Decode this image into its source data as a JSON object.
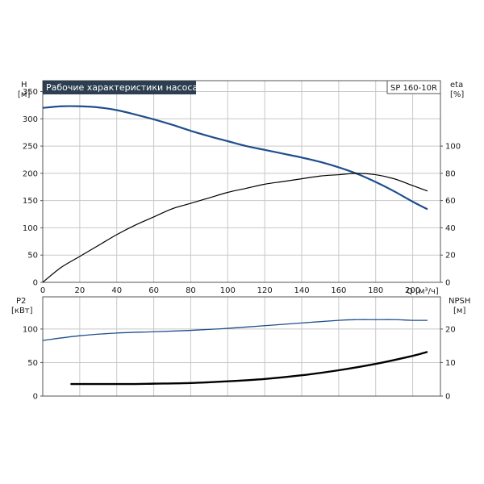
{
  "header": {
    "title": "Рабочие характеристики насоса",
    "model": "SP 160-10R"
  },
  "colors": {
    "head_curve": "#1f4e8c",
    "eta_curve": "#000000",
    "p2_curve": "#1f4e8c",
    "npsh_curve": "#000000",
    "title_bg": "#2c3e50"
  },
  "chart_data": [
    {
      "type": "line",
      "panel": "top",
      "xlabel": "Q [м³/ч]",
      "x_ticks": [
        "0",
        "20",
        "40",
        "60",
        "80",
        "100",
        "120",
        "140",
        "160",
        "180",
        "200"
      ],
      "xlim": [
        0,
        215
      ],
      "left_axis": {
        "label_line1": "H",
        "label_line2": "[м]",
        "ylim": [
          0,
          370
        ],
        "ticks": [
          "0",
          "50",
          "100",
          "150",
          "200",
          "250",
          "300",
          "350"
        ]
      },
      "right_axis": {
        "label_line1": "eta",
        "label_line2": "[%]",
        "ylim": [
          0,
          148
        ],
        "ticks": [
          "0",
          "20",
          "40",
          "60",
          "80",
          "100"
        ]
      },
      "grid": true,
      "series": [
        {
          "name": "H",
          "axis": "left",
          "x": [
            0,
            10,
            20,
            30,
            40,
            50,
            60,
            70,
            80,
            90,
            100,
            110,
            120,
            130,
            140,
            150,
            160,
            170,
            180,
            190,
            200,
            208
          ],
          "y": [
            320,
            323,
            323,
            321,
            316,
            308,
            299,
            289,
            278,
            268,
            259,
            250,
            243,
            236,
            229,
            221,
            211,
            199,
            184,
            167,
            148,
            134
          ]
        },
        {
          "name": "eta",
          "axis": "right",
          "x": [
            0,
            10,
            20,
            30,
            40,
            50,
            60,
            70,
            80,
            90,
            100,
            110,
            120,
            130,
            140,
            150,
            160,
            170,
            180,
            190,
            200,
            208
          ],
          "y": [
            0,
            11,
            19,
            27,
            35,
            42,
            48,
            54,
            58,
            62,
            66,
            69,
            72,
            74,
            76,
            78,
            79,
            80,
            79,
            76,
            71,
            67
          ]
        }
      ]
    },
    {
      "type": "line",
      "panel": "bottom",
      "xlim": [
        0,
        215
      ],
      "left_axis": {
        "label_line1": "P2",
        "label_line2": "[кВт]",
        "ylim": [
          0,
          148
        ],
        "ticks": [
          "0",
          "50",
          "100"
        ]
      },
      "right_axis": {
        "label_line1": "NPSH",
        "label_line2": "[м]",
        "ylim": [
          0,
          29.6
        ],
        "ticks": [
          "0",
          "10",
          "20"
        ]
      },
      "grid": true,
      "series": [
        {
          "name": "P2",
          "axis": "left",
          "x": [
            0,
            20,
            40,
            60,
            80,
            100,
            120,
            140,
            160,
            170,
            180,
            190,
            200,
            208
          ],
          "y": [
            83,
            90,
            94,
            96,
            98,
            101,
            105,
            109,
            113,
            114,
            114,
            114,
            113,
            113
          ]
        },
        {
          "name": "NPSH",
          "axis": "right",
          "x": [
            15,
            30,
            50,
            60,
            80,
            100,
            120,
            140,
            160,
            180,
            200,
            208
          ],
          "y": [
            3.6,
            3.6,
            3.6,
            3.7,
            3.9,
            4.4,
            5.1,
            6.2,
            7.7,
            9.6,
            12.0,
            13.2
          ]
        }
      ]
    }
  ]
}
